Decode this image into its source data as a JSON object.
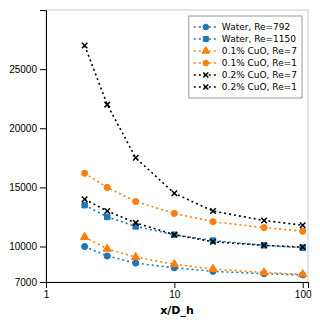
{
  "chart_data": {
    "type": "line",
    "title": "",
    "xlabel": "x/D_h",
    "ylabel": "",
    "x": [
      2,
      3,
      5,
      10,
      20,
      50,
      100
    ],
    "series": [
      {
        "name": "Water, Re=792",
        "color": "#1f77b4",
        "marker": "circle",
        "line_style": "dotted",
        "values": [
          10000,
          9200,
          8600,
          8200,
          7900,
          7700,
          7600
        ]
      },
      {
        "name": "Water, Re=1150",
        "color": "#1f77b4",
        "marker": "square",
        "line_style": "dotted",
        "values": [
          13500,
          12500,
          11700,
          11000,
          10500,
          10100,
          9900
        ]
      },
      {
        "name": "0.1% CuO, Re=7",
        "color": "#ff7f0e",
        "marker": "triangle",
        "line_style": "dotted",
        "values": [
          10800,
          9800,
          9100,
          8500,
          8100,
          7800,
          7650
        ]
      },
      {
        "name": "0.1% CuO, Re=1",
        "color": "#ff7f0e",
        "marker": "circle",
        "line_style": "dotted",
        "values": [
          16200,
          15000,
          13800,
          12800,
          12100,
          11600,
          11300
        ]
      },
      {
        "name": "0.2% CuO, Re=7",
        "color": "#000000",
        "marker": "x",
        "line_style": "dotted",
        "values": [
          14000,
          13000,
          12000,
          11000,
          10400,
          10100,
          9950
        ]
      },
      {
        "name": "0.2% CuO, Re=1",
        "color": "#000000",
        "marker": "x",
        "line_style": "dotted",
        "values": [
          27000,
          22000,
          17500,
          14500,
          13000,
          12200,
          11800
        ]
      }
    ],
    "xlim": [
      1,
      110
    ],
    "ylim": [
      7000,
      30000
    ],
    "xticks": [
      1,
      10,
      100
    ],
    "yticks": [
      7000,
      10000,
      15000,
      20000,
      25000
    ],
    "log": "x",
    "grid": false,
    "legend": "upper right"
  }
}
